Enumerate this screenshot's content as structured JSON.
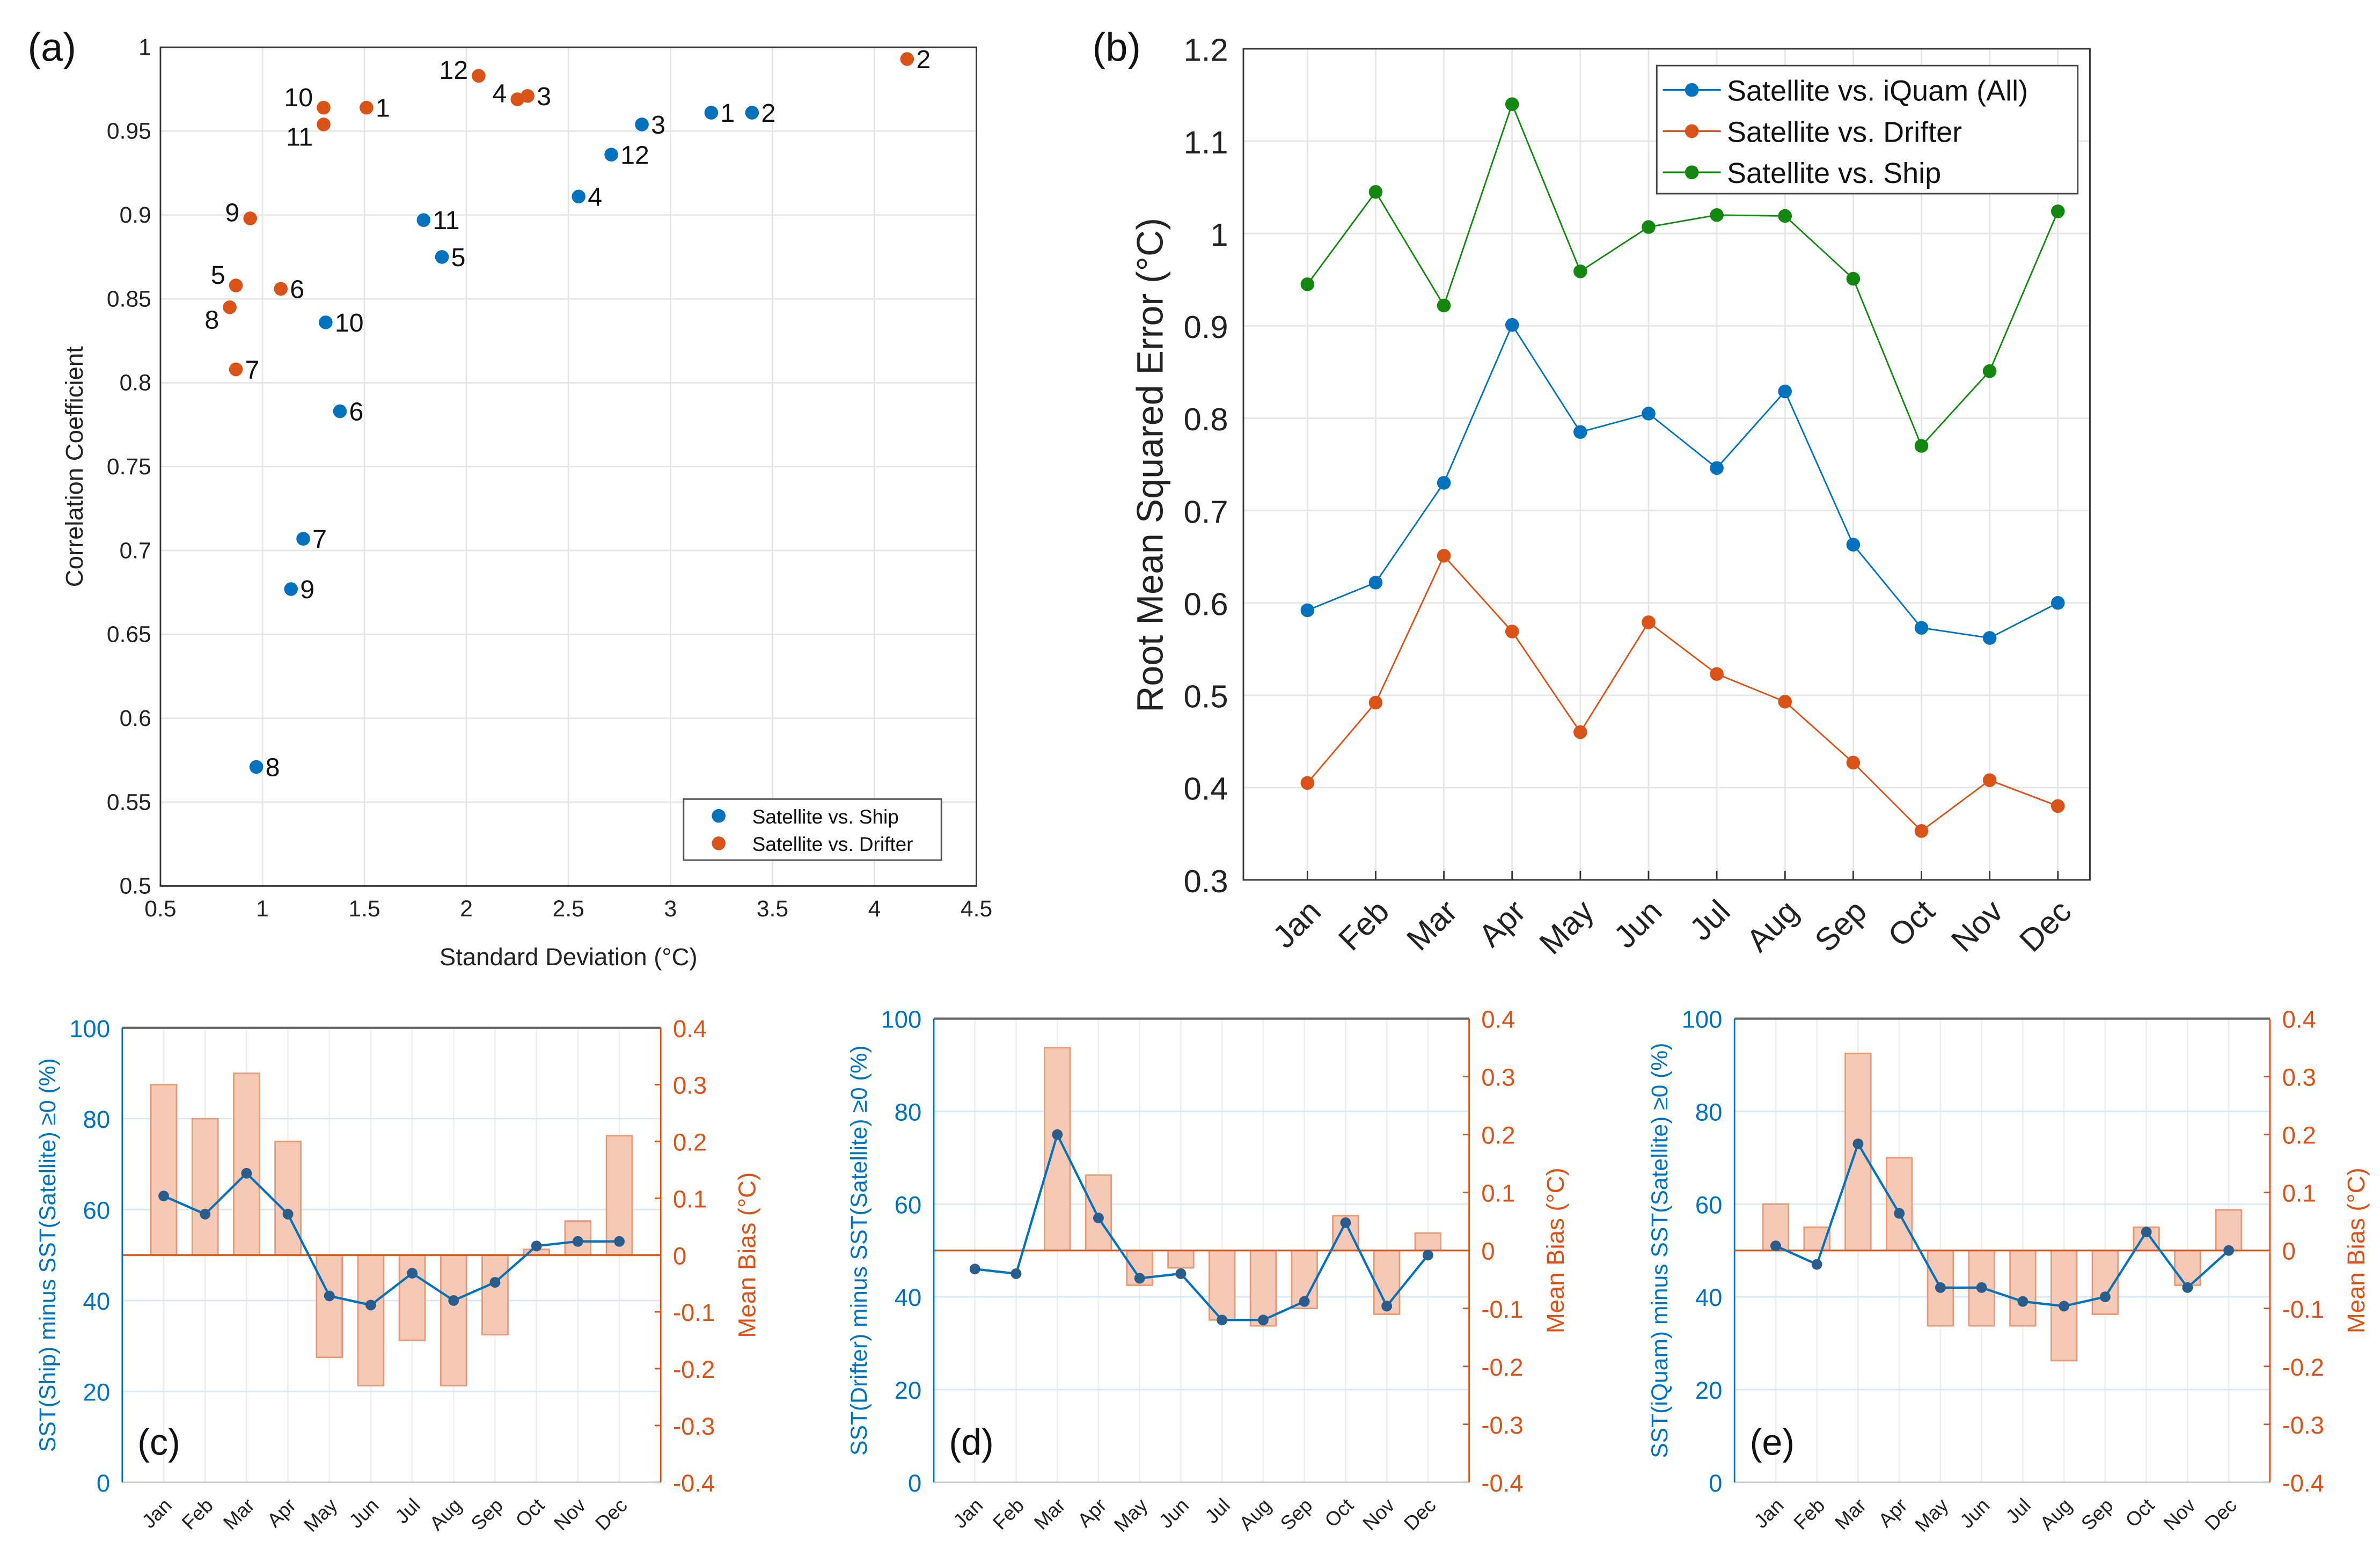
{
  "colors": {
    "blue": "#0072bd",
    "orange": "#d95319",
    "green": "#13870f",
    "bar_fill": "#f5c9b6",
    "bar_edge": "#e69a78"
  },
  "chart_data": [
    {
      "type": "scatter",
      "panel_label": "(a)",
      "xlabel": "Standard Deviation (°C)",
      "ylabel": "Correlation Coefficient",
      "xlim": [
        0.5,
        4.5
      ],
      "ylim": [
        0.5,
        1
      ],
      "xticks": [
        0.5,
        1,
        1.5,
        2,
        2.5,
        3,
        3.5,
        4,
        4.5
      ],
      "xtick_labels": [
        "0.5",
        "1",
        "1.5",
        "2",
        "2.5",
        "3",
        "3.5",
        "4",
        "4.5"
      ],
      "yticks": [
        0.5,
        0.55,
        0.6,
        0.65,
        0.7,
        0.75,
        0.8,
        0.85,
        0.9,
        0.95,
        1
      ],
      "ytick_labels": [
        "0.5",
        "0.55",
        "0.6",
        "0.65",
        "0.7",
        "0.75",
        "0.8",
        "0.85",
        "0.9",
        "0.95",
        "1"
      ],
      "legend": "bottom-right",
      "series": [
        {
          "name": "Satellite vs. Ship",
          "color": "#0072bd",
          "points": [
            {
              "label": "1",
              "x": 3.2,
              "y": 0.961
            },
            {
              "label": "2",
              "x": 3.4,
              "y": 0.961
            },
            {
              "label": "3",
              "x": 2.86,
              "y": 0.954
            },
            {
              "label": "4",
              "x": 2.55,
              "y": 0.911
            },
            {
              "label": "5",
              "x": 1.88,
              "y": 0.875
            },
            {
              "label": "6",
              "x": 1.38,
              "y": 0.783
            },
            {
              "label": "7",
              "x": 1.2,
              "y": 0.707
            },
            {
              "label": "8",
              "x": 0.97,
              "y": 0.571
            },
            {
              "label": "9",
              "x": 1.14,
              "y": 0.677
            },
            {
              "label": "10",
              "x": 1.31,
              "y": 0.836
            },
            {
              "label": "11",
              "x": 1.79,
              "y": 0.897
            },
            {
              "label": "12",
              "x": 2.71,
              "y": 0.936
            }
          ]
        },
        {
          "name": "Satellite vs. Drifter",
          "color": "#d95319",
          "points": [
            {
              "label": "1",
              "x": 1.51,
              "y": 0.964
            },
            {
              "label": "2",
              "x": 4.16,
              "y": 0.993
            },
            {
              "label": "3",
              "x": 2.3,
              "y": 0.971
            },
            {
              "label": "4",
              "x": 2.25,
              "y": 0.969
            },
            {
              "label": "5",
              "x": 0.87,
              "y": 0.858
            },
            {
              "label": "6",
              "x": 1.09,
              "y": 0.856
            },
            {
              "label": "7",
              "x": 0.87,
              "y": 0.808
            },
            {
              "label": "8",
              "x": 0.84,
              "y": 0.845
            },
            {
              "label": "9",
              "x": 0.94,
              "y": 0.898
            },
            {
              "label": "10",
              "x": 1.3,
              "y": 0.964
            },
            {
              "label": "11",
              "x": 1.3,
              "y": 0.954
            },
            {
              "label": "12",
              "x": 2.06,
              "y": 0.983
            }
          ]
        }
      ]
    },
    {
      "type": "line",
      "panel_label": "(b)",
      "xlabel": "",
      "ylabel": "Root Mean Squared Error (°C)",
      "ylim": [
        0.3,
        1.2
      ],
      "yticks": [
        0.3,
        0.4,
        0.5,
        0.6,
        0.7,
        0.8,
        0.9,
        1,
        1.1,
        1.2
      ],
      "ytick_labels": [
        "0.3",
        "0.4",
        "0.5",
        "0.6",
        "0.7",
        "0.8",
        "0.9",
        "1",
        "1.1",
        "1.2"
      ],
      "categories": [
        "Jan",
        "Feb",
        "Mar",
        "Apr",
        "May",
        "Jun",
        "Jul",
        "Aug",
        "Sep",
        "Oct",
        "Nov",
        "Dec"
      ],
      "legend": "top-right",
      "series": [
        {
          "name": "Satellite vs. iQuam (All)",
          "color": "#0072bd",
          "values": [
            0.592,
            0.622,
            0.73,
            0.901,
            0.785,
            0.805,
            0.746,
            0.829,
            0.663,
            0.573,
            0.562,
            0.6
          ]
        },
        {
          "name": "Satellite vs. Drifter",
          "color": "#d95319",
          "values": [
            0.405,
            0.492,
            0.651,
            0.569,
            0.46,
            0.579,
            0.523,
            0.493,
            0.427,
            0.353,
            0.408,
            0.38
          ]
        },
        {
          "name": "Satellite vs. Ship",
          "color": "#13870f",
          "values": [
            0.945,
            1.045,
            0.922,
            1.14,
            0.959,
            1.007,
            1.02,
            1.019,
            0.951,
            0.77,
            0.851,
            1.024
          ]
        }
      ]
    },
    {
      "type": "bar",
      "panel_label": "(c)",
      "ylabel": "SST(Ship) minus SST(Satellite) ≥0  (%)",
      "ylabel_right": "Mean Bias (°C)",
      "ylim": [
        0,
        100
      ],
      "ylim_right": [
        -0.4,
        0.4
      ],
      "ytick_labels": [
        "0",
        "20",
        "40",
        "60",
        "80",
        "100"
      ],
      "ytick_labels_right": [
        "-0.4",
        "-0.3",
        "-0.2",
        "-0.1",
        "0",
        "0.1",
        "0.2",
        "0.3",
        "0.4"
      ],
      "categories": [
        "Jan",
        "Feb",
        "Mar",
        "Apr",
        "May",
        "Jun",
        "Jul",
        "Aug",
        "Sep",
        "Oct",
        "Nov",
        "Dec"
      ],
      "percent": [
        63,
        59,
        68,
        59,
        41,
        39,
        46,
        40,
        44,
        52,
        53,
        53
      ],
      "mean_bias": [
        0.3,
        0.24,
        0.32,
        0.2,
        -0.18,
        -0.23,
        -0.15,
        -0.23,
        -0.14,
        0.01,
        0.06,
        0.21
      ]
    },
    {
      "type": "bar",
      "panel_label": "(d)",
      "ylabel": "SST(Drifter) minus SST(Satellite) ≥0  (%)",
      "ylabel_right": "Mean Bias (°C)",
      "ylim": [
        0,
        100
      ],
      "ylim_right": [
        -0.4,
        0.4
      ],
      "ytick_labels": [
        "0",
        "20",
        "40",
        "60",
        "80",
        "100"
      ],
      "ytick_labels_right": [
        "-0.4",
        "-0.3",
        "-0.2",
        "-0.1",
        "0",
        "0.1",
        "0.2",
        "0.3",
        "0.4"
      ],
      "categories": [
        "Jan",
        "Feb",
        "Mar",
        "Apr",
        "May",
        "Jun",
        "Jul",
        "Aug",
        "Sep",
        "Oct",
        "Nov",
        "Dec"
      ],
      "percent": [
        46,
        45,
        75,
        57,
        44,
        45,
        35,
        35,
        39,
        56,
        38,
        49
      ],
      "mean_bias": [
        0.0,
        0.0,
        0.35,
        0.13,
        -0.06,
        -0.03,
        -0.12,
        -0.13,
        -0.1,
        0.06,
        -0.11,
        0.03
      ]
    },
    {
      "type": "bar",
      "panel_label": "(e)",
      "ylabel": "SST(iQuam) minus SST(Satellite) ≥0  (%)",
      "ylabel_right": "Mean Bias (°C)",
      "ylim": [
        0,
        100
      ],
      "ylim_right": [
        -0.4,
        0.4
      ],
      "ytick_labels": [
        "0",
        "20",
        "40",
        "60",
        "80",
        "100"
      ],
      "ytick_labels_right": [
        "-0.4",
        "-0.3",
        "-0.2",
        "-0.1",
        "0",
        "0.1",
        "0.2",
        "0.3",
        "0.4"
      ],
      "categories": [
        "Jan",
        "Feb",
        "Mar",
        "Apr",
        "May",
        "Jun",
        "Jul",
        "Aug",
        "Sep",
        "Oct",
        "Nov",
        "Dec"
      ],
      "percent": [
        51,
        47,
        73,
        58,
        42,
        42,
        39,
        38,
        40,
        54,
        42,
        50
      ],
      "mean_bias": [
        0.08,
        0.04,
        0.34,
        0.16,
        -0.13,
        -0.13,
        -0.13,
        -0.19,
        -0.11,
        0.04,
        -0.06,
        0.07
      ]
    }
  ]
}
